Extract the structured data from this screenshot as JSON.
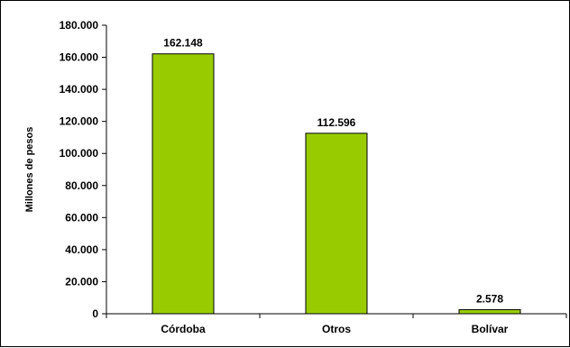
{
  "chart_data": {
    "type": "bar",
    "title": "",
    "xlabel": "",
    "ylabel": "Millones de pesos",
    "categories": [
      "Córdoba",
      "Otros",
      "Bolívar"
    ],
    "values": [
      162148,
      112596,
      2578
    ],
    "data_labels": [
      "162.148",
      "112.596",
      "2.578"
    ],
    "ylim": [
      0,
      180000
    ],
    "yticks": [
      0,
      20000,
      40000,
      60000,
      80000,
      100000,
      120000,
      140000,
      160000,
      180000
    ],
    "ytick_labels": [
      "0",
      "20.000",
      "40.000",
      "60.000",
      "80.000",
      "100.000",
      "120.000",
      "140.000",
      "160.000",
      "180.000"
    ],
    "grid": false,
    "legend": "none",
    "colors": {
      "bar_fill": "#99CC00",
      "bar_stroke": "#000000",
      "axis": "#000000"
    }
  }
}
